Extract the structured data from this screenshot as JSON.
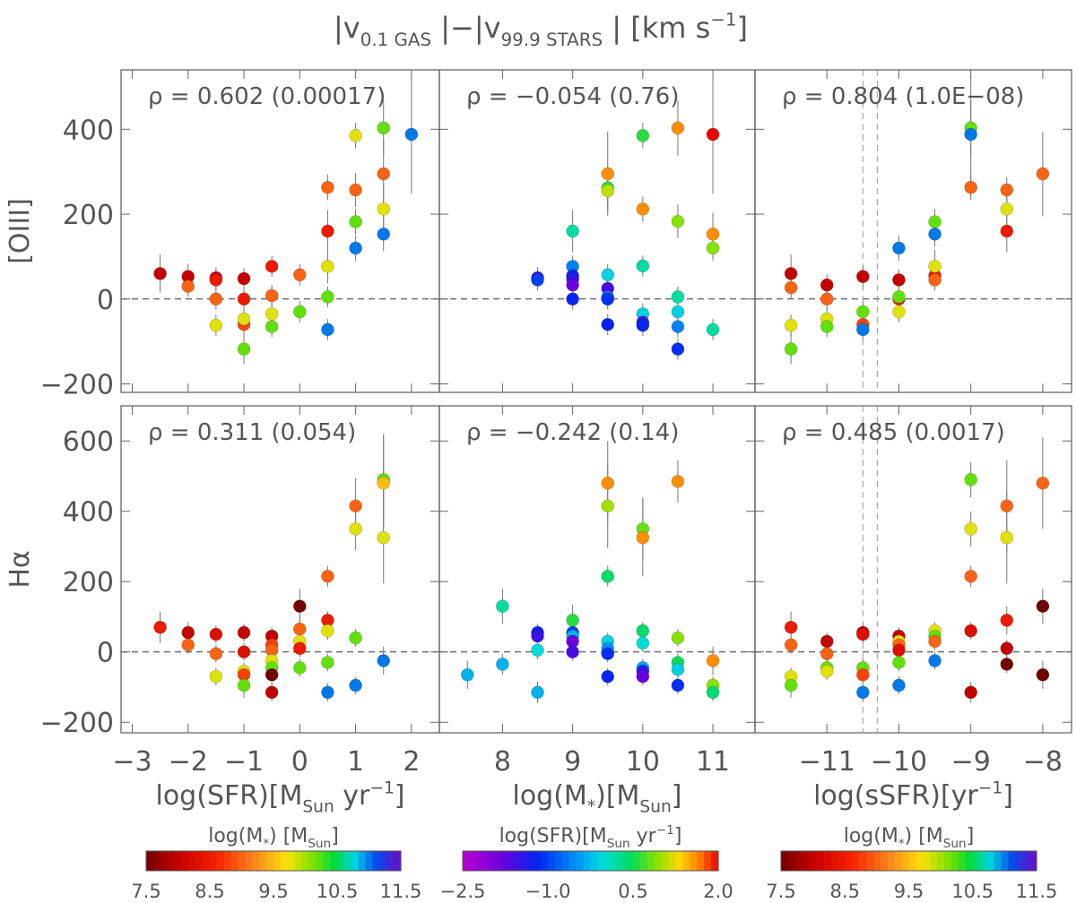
{
  "figure": {
    "title_parts": [
      "|v",
      "0.1 GAS",
      " |−|v",
      "99.9 STARS",
      " |  [km s",
      "−1",
      "]"
    ]
  },
  "row_labels": [
    "[OIII]",
    "Hα"
  ],
  "x_axes": [
    {
      "label_parts": [
        "log(SFR)[M",
        "Sun",
        " yr",
        "−1",
        "]"
      ],
      "ticks": [
        -3,
        -2,
        -1,
        0,
        1,
        2
      ],
      "tick_labels": [
        "−3",
        "−2",
        "−1",
        "0",
        "1",
        "2"
      ],
      "range": [
        -3.2,
        2.5
      ]
    },
    {
      "label_parts": [
        "log(M",
        "*",
        ")[M",
        "Sun",
        "]"
      ],
      "ticks": [
        8,
        9,
        10,
        11
      ],
      "tick_labels": [
        "8",
        "9",
        "10",
        "11"
      ],
      "range": [
        7.1,
        11.6
      ]
    },
    {
      "label_parts": [
        "log(sSFR)[yr",
        "−1",
        "]"
      ],
      "ticks": [
        -11,
        -10,
        -9,
        -8
      ],
      "tick_labels": [
        "−11",
        "−10",
        "−9",
        "−8"
      ],
      "range": [
        -12.0,
        -7.6
      ]
    }
  ],
  "y_axes": [
    {
      "ticks": [
        -200,
        0,
        200,
        400
      ],
      "tick_labels": [
        "−200",
        "0",
        "200",
        "400"
      ],
      "range": [
        -220,
        540
      ]
    },
    {
      "ticks": [
        -200,
        0,
        200,
        400,
        600
      ],
      "tick_labels": [
        "−200",
        "0",
        "200",
        "400",
        "600"
      ],
      "range": [
        -230,
        700
      ]
    }
  ],
  "colorbars": [
    {
      "title_parts": [
        "log(M",
        "*",
        ")  [M",
        "Sun",
        "]"
      ],
      "tick_labels": [
        "7.5",
        "8.5",
        "9.5",
        "10.5",
        "11.5"
      ],
      "range": [
        7.5,
        11.5
      ],
      "palette": "mass"
    },
    {
      "title_parts": [
        "log(SFR)[M",
        "Sun",
        " yr",
        "−1",
        "]"
      ],
      "tick_labels": [
        "−2.5",
        "−1.0",
        "0.5",
        "2.0"
      ],
      "range": [
        -2.5,
        2.0
      ],
      "palette": "sfr"
    },
    {
      "title_parts": [
        "log(M",
        "*",
        ")  [M",
        "Sun",
        "]"
      ],
      "tick_labels": [
        "7.5",
        "8.5",
        "9.5",
        "10.5",
        "11.5"
      ],
      "range": [
        7.5,
        11.5
      ],
      "palette": "mass"
    }
  ],
  "chart_data": [
    {
      "type": "scatter",
      "row": 0,
      "col": 0,
      "annotation": "ρ = 0.602 (0.00017)",
      "points": [
        [
          -2.5,
          60,
          8.0,
          45
        ],
        [
          -2,
          53,
          8.0,
          30
        ],
        [
          -2,
          30,
          9.0,
          25
        ],
        [
          -1.5,
          50,
          8.0,
          25
        ],
        [
          -1.5,
          45,
          8.5,
          25
        ],
        [
          -1.5,
          0,
          9.0,
          25
        ],
        [
          -1.5,
          -62,
          9.8,
          25
        ],
        [
          -1,
          48,
          8.0,
          25
        ],
        [
          -1,
          0,
          8.5,
          25
        ],
        [
          -1,
          -60,
          8.8,
          25
        ],
        [
          -1,
          -47,
          9.8,
          25
        ],
        [
          -1,
          -118,
          10.2,
          35
        ],
        [
          -0.5,
          77,
          8.5,
          25
        ],
        [
          -0.5,
          8,
          9.0,
          25
        ],
        [
          -0.5,
          -35,
          9.8,
          25
        ],
        [
          -0.5,
          -65,
          10.2,
          25
        ],
        [
          0,
          57,
          9.0,
          25
        ],
        [
          0,
          -30,
          10.2,
          25
        ],
        [
          0.5,
          263,
          9.0,
          30
        ],
        [
          0.5,
          160,
          8.5,
          50
        ],
        [
          0.5,
          77,
          9.8,
          40
        ],
        [
          0.5,
          5,
          10.2,
          25
        ],
        [
          0.5,
          -72,
          11.0,
          25
        ],
        [
          1,
          385,
          9.8,
          30
        ],
        [
          1,
          257,
          9.0,
          40
        ],
        [
          1,
          182,
          10.2,
          30
        ],
        [
          1,
          120,
          11.0,
          30
        ],
        [
          1.5,
          403,
          10.2,
          65
        ],
        [
          1.5,
          295,
          9.0,
          80
        ],
        [
          1.5,
          212,
          9.8,
          60
        ],
        [
          1.5,
          153,
          11.0,
          40
        ],
        [
          2,
          388,
          11.0,
          140
        ]
      ]
    },
    {
      "type": "scatter",
      "row": 0,
      "col": 1,
      "annotation": "ρ = −0.054 (0.76)",
      "points": [
        [
          8.5,
          50,
          -1.5,
          25
        ],
        [
          8.5,
          45,
          -1.0,
          25
        ],
        [
          9,
          160,
          0.2,
          50
        ],
        [
          9,
          77,
          -0.6,
          25
        ],
        [
          9,
          55,
          -1.2,
          25
        ],
        [
          9,
          47,
          -1.4,
          25
        ],
        [
          9,
          33,
          -1.8,
          25
        ],
        [
          9,
          0,
          -1.2,
          25
        ],
        [
          9.5,
          295,
          1.6,
          100
        ],
        [
          9.5,
          262,
          0.6,
          50
        ],
        [
          9.5,
          255,
          1.1,
          50
        ],
        [
          9.5,
          57,
          -0.1,
          25
        ],
        [
          9.5,
          25,
          -1.6,
          25
        ],
        [
          9.5,
          5,
          -0.6,
          25
        ],
        [
          9.5,
          0,
          -1.1,
          25
        ],
        [
          9.5,
          -60,
          -1.2,
          25
        ],
        [
          10,
          385,
          0.6,
          30
        ],
        [
          10,
          212,
          1.6,
          30
        ],
        [
          10,
          78,
          0.2,
          25
        ],
        [
          10,
          -35,
          -0.1,
          25
        ],
        [
          10,
          -55,
          -1.5,
          25
        ],
        [
          10,
          -62,
          -1.2,
          25
        ],
        [
          10.5,
          403,
          1.6,
          65
        ],
        [
          10.5,
          183,
          0.9,
          40
        ],
        [
          10.5,
          5,
          0.2,
          25
        ],
        [
          10.5,
          -30,
          -0.1,
          25
        ],
        [
          10.5,
          -65,
          -0.6,
          25
        ],
        [
          10.5,
          -118,
          -1.1,
          25
        ],
        [
          11,
          388,
          2.0,
          140
        ],
        [
          11,
          153,
          1.6,
          50
        ],
        [
          11,
          120,
          0.9,
          30
        ],
        [
          11,
          -72,
          0.2,
          25
        ]
      ]
    },
    {
      "type": "scatter",
      "row": 0,
      "col": 2,
      "annotation": "ρ = 0.804 (1.0E−08)",
      "points": [
        [
          -11.5,
          60,
          8.0,
          45
        ],
        [
          -11.5,
          27,
          9.0,
          25
        ],
        [
          -11.5,
          -62,
          9.8,
          25
        ],
        [
          -11.5,
          -118,
          10.2,
          35
        ],
        [
          -11,
          33,
          8.0,
          25
        ],
        [
          -11,
          0,
          9.0,
          25
        ],
        [
          -11,
          -47,
          9.8,
          25
        ],
        [
          -11,
          -65,
          10.2,
          25
        ],
        [
          -10.5,
          53,
          8.0,
          25
        ],
        [
          -10.5,
          -60,
          8.8,
          25
        ],
        [
          -10.5,
          -30,
          10.2,
          25
        ],
        [
          -10.5,
          -72,
          11.0,
          25
        ],
        [
          -10,
          45,
          8.0,
          25
        ],
        [
          -10,
          0,
          8.5,
          25
        ],
        [
          -10,
          -30,
          9.8,
          25
        ],
        [
          -10,
          5,
          10.2,
          25
        ],
        [
          -10,
          120,
          11.0,
          30
        ],
        [
          -9.5,
          55,
          8.5,
          25
        ],
        [
          -9.5,
          45,
          9.0,
          25
        ],
        [
          -9.5,
          77,
          9.8,
          40
        ],
        [
          -9.5,
          182,
          10.2,
          30
        ],
        [
          -9.5,
          153,
          11.0,
          30
        ],
        [
          -9,
          403,
          10.2,
          65
        ],
        [
          -9,
          388,
          11.0,
          140
        ],
        [
          -9,
          263,
          9.0,
          30
        ],
        [
          -8.5,
          257,
          9.0,
          30
        ],
        [
          -8.5,
          212,
          9.8,
          40
        ],
        [
          -8.5,
          160,
          8.5,
          50
        ],
        [
          -8,
          295,
          9.0,
          100
        ]
      ]
    },
    {
      "type": "scatter",
      "row": 1,
      "col": 0,
      "annotation": "ρ = 0.311 (0.054)",
      "points": [
        [
          -2.5,
          70,
          8.5,
          45
        ],
        [
          -2,
          55,
          8.0,
          30
        ],
        [
          -2,
          20,
          9.0,
          25
        ],
        [
          -1.5,
          50,
          8.3,
          25
        ],
        [
          -1.5,
          -5,
          9.0,
          25
        ],
        [
          -1.5,
          -70,
          9.8,
          25
        ],
        [
          -1,
          55,
          8.0,
          25
        ],
        [
          -1,
          0,
          8.3,
          25
        ],
        [
          -1,
          -55,
          9.8,
          25
        ],
        [
          -1,
          -65,
          8.8,
          25
        ],
        [
          -1,
          -95,
          10.2,
          35
        ],
        [
          -0.5,
          45,
          8.0,
          25
        ],
        [
          -0.5,
          20,
          8.8,
          25
        ],
        [
          -0.5,
          5,
          9.0,
          25
        ],
        [
          -0.5,
          -25,
          9.8,
          25
        ],
        [
          -0.5,
          -45,
          10.2,
          25
        ],
        [
          -0.5,
          -65,
          7.5,
          30
        ],
        [
          -0.5,
          -115,
          8.0,
          25
        ],
        [
          0,
          130,
          7.5,
          50
        ],
        [
          0,
          65,
          9.0,
          40
        ],
        [
          0,
          30,
          9.8,
          40
        ],
        [
          0,
          10,
          8.5,
          25
        ],
        [
          0,
          -45,
          10.2,
          25
        ],
        [
          0.5,
          215,
          9.0,
          30
        ],
        [
          0.5,
          90,
          8.5,
          25
        ],
        [
          0.5,
          60,
          9.8,
          25
        ],
        [
          0.5,
          -30,
          10.2,
          25
        ],
        [
          0.5,
          -115,
          11.0,
          25
        ],
        [
          1,
          415,
          9.0,
          80
        ],
        [
          1,
          350,
          9.8,
          60
        ],
        [
          1,
          40,
          10.2,
          25
        ],
        [
          1,
          -95,
          11.0,
          25
        ],
        [
          1.5,
          490,
          10.2,
          130
        ],
        [
          1.5,
          480,
          9.5,
          130
        ],
        [
          1.5,
          325,
          9.8,
          130
        ],
        [
          1.5,
          -25,
          11.0,
          40
        ]
      ]
    },
    {
      "type": "scatter",
      "row": 1,
      "col": 1,
      "annotation": "ρ = −0.242 (0.14)",
      "points": [
        [
          7.5,
          -65,
          -0.3,
          40
        ],
        [
          8,
          130,
          0.2,
          50
        ],
        [
          8,
          -35,
          -0.3,
          30
        ],
        [
          8.5,
          55,
          -1.2,
          25
        ],
        [
          8.5,
          45,
          -1.5,
          25
        ],
        [
          8.5,
          5,
          0.0,
          25
        ],
        [
          8.5,
          -115,
          -0.3,
          30
        ],
        [
          9,
          90,
          0.6,
          45
        ],
        [
          9,
          55,
          -1.0,
          25
        ],
        [
          9,
          45,
          -0.3,
          30
        ],
        [
          9,
          30,
          -1.8,
          25
        ],
        [
          9,
          0,
          -1.6,
          25
        ],
        [
          9.5,
          480,
          1.6,
          120
        ],
        [
          9.5,
          415,
          1.0,
          120
        ],
        [
          9.5,
          215,
          0.4,
          30
        ],
        [
          9.5,
          30,
          -0.1,
          25
        ],
        [
          9.5,
          10,
          -0.5,
          25
        ],
        [
          9.5,
          -5,
          -1.1,
          25
        ],
        [
          9.5,
          -70,
          -1.2,
          25
        ],
        [
          10,
          350,
          0.8,
          90
        ],
        [
          10,
          325,
          1.6,
          110
        ],
        [
          10,
          60,
          0.4,
          25
        ],
        [
          10,
          25,
          0.0,
          25
        ],
        [
          10,
          -45,
          -0.4,
          25
        ],
        [
          10,
          -55,
          -1.4,
          25
        ],
        [
          10,
          -70,
          -1.8,
          25
        ],
        [
          10.5,
          485,
          1.6,
          60
        ],
        [
          10.5,
          40,
          0.9,
          25
        ],
        [
          10.5,
          -30,
          0.5,
          25
        ],
        [
          10.5,
          -50,
          -0.1,
          25
        ],
        [
          10.5,
          -95,
          -1.1,
          25
        ],
        [
          11,
          -25,
          1.6,
          40
        ],
        [
          11,
          -95,
          0.9,
          25
        ],
        [
          11,
          -115,
          0.4,
          25
        ]
      ]
    },
    {
      "type": "scatter",
      "row": 1,
      "col": 2,
      "annotation": "ρ = 0.485 (0.0017)",
      "points": [
        [
          -11.5,
          70,
          8.5,
          45
        ],
        [
          -11.5,
          20,
          9.0,
          25
        ],
        [
          -11.5,
          -70,
          9.8,
          25
        ],
        [
          -11.5,
          -95,
          10.2,
          35
        ],
        [
          -11,
          30,
          8.0,
          25
        ],
        [
          -11,
          -5,
          9.0,
          25
        ],
        [
          -11,
          -45,
          10.2,
          25
        ],
        [
          -11,
          -55,
          9.8,
          25
        ],
        [
          -10.5,
          55,
          8.0,
          25
        ],
        [
          -10.5,
          50,
          8.3,
          25
        ],
        [
          -10.5,
          -45,
          10.2,
          25
        ],
        [
          -10.5,
          -65,
          8.8,
          25
        ],
        [
          -10.5,
          -115,
          11.0,
          25
        ],
        [
          -10,
          45,
          8.0,
          25
        ],
        [
          -10,
          30,
          9.8,
          25
        ],
        [
          -10,
          20,
          9.0,
          25
        ],
        [
          -10,
          5,
          8.3,
          25
        ],
        [
          -10,
          -30,
          10.2,
          25
        ],
        [
          -10,
          -95,
          11.0,
          25
        ],
        [
          -9.5,
          60,
          9.8,
          25
        ],
        [
          -9.5,
          45,
          10.2,
          25
        ],
        [
          -9.5,
          30,
          9.0,
          25
        ],
        [
          -9.5,
          -25,
          11.0,
          25
        ],
        [
          -9,
          490,
          10.2,
          50
        ],
        [
          -9,
          350,
          9.8,
          50
        ],
        [
          -9,
          215,
          9.0,
          30
        ],
        [
          -9,
          60,
          8.3,
          25
        ],
        [
          -9,
          -115,
          8.0,
          30
        ],
        [
          -8.5,
          415,
          9.0,
          130
        ],
        [
          -8.5,
          325,
          9.8,
          130
        ],
        [
          -8.5,
          90,
          8.5,
          40
        ],
        [
          -8.5,
          10,
          8.0,
          25
        ],
        [
          -8.5,
          -35,
          7.5,
          25
        ],
        [
          -8,
          480,
          9.0,
          130
        ],
        [
          -8,
          130,
          7.5,
          50
        ],
        [
          -8,
          -65,
          7.5,
          40
        ]
      ]
    }
  ]
}
